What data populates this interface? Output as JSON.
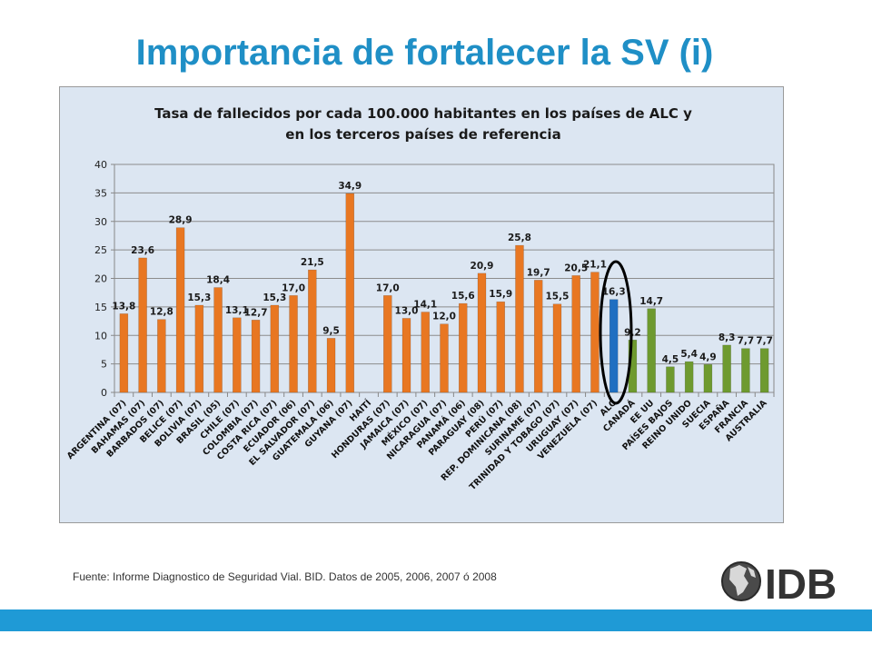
{
  "slide": {
    "title": "Importancia de fortalecer la SV (i)",
    "source": "Fuente: Informe Diagnostico de Seguridad Vial. BID. Datos de 2005, 2006, 2007 ó 2008",
    "logo_text": "IDB"
  },
  "colors": {
    "title": "#1f8fc6",
    "alc_bar": "#e87722",
    "aggregate_bar": "#1f6fc1",
    "reference_bar": "#6e9a2f",
    "bottom_bar": "#1f9ad6",
    "chart_bg": "#dce6f2"
  },
  "chart_data": {
    "type": "bar",
    "title": "Tasa de fallecidos por cada 100.000 habitantes en los países de ALC y en los terceros países de referencia",
    "title_lines": [
      "Tasa de fallecidos por cada 100.000 habitantes en los países de ALC y",
      "en los terceros países de referencia"
    ],
    "xlabel": "",
    "ylabel": "",
    "ylim": [
      0,
      40
    ],
    "yticks": [
      0,
      5,
      10,
      15,
      20,
      25,
      30,
      35,
      40
    ],
    "grid": true,
    "highlight": "ALC (oval outline)",
    "categories": [
      "ARGENTINA (07)",
      "BAHAMAS (07)",
      "BARBADOS (07)",
      "BELICE (07)",
      "BOLIVIA (07)",
      "BRASIL (05)",
      "CHILE (07)",
      "COLOMBIA (07)",
      "COSTA RICA (07)",
      "ECUADOR (06)",
      "EL SALVADOR (07)",
      "GUATEMALA (06)",
      "GUYANA (07)",
      "HAITÍ",
      "HONDURAS (07)",
      "JAMAICA (07)",
      "MÉXICO (07)",
      "NICARAGUA (07)",
      "PANAMÁ (06)",
      "PARAGUAY (08)",
      "PERÚ (07)",
      "REP. DOMINICANA (08)",
      "SURINAME (07)",
      "TRINIDAD Y TOBAGO (07)",
      "URUGUAY (07)",
      "VENEZUELA (07)",
      "ALC",
      "CANADÁ",
      "EE UU",
      "PAÍSES BAJOS",
      "REINO UNIDO",
      "SUECIA",
      "ESPAÑA",
      "FRANCIA",
      "AUSTRALIA"
    ],
    "values": [
      13.8,
      23.6,
      12.8,
      28.9,
      15.3,
      18.4,
      13.1,
      12.7,
      15.3,
      17.0,
      21.5,
      9.5,
      34.9,
      null,
      17.0,
      13.0,
      14.1,
      12.0,
      15.6,
      20.9,
      15.9,
      25.8,
      19.7,
      15.5,
      20.5,
      21.1,
      16.3,
      9.2,
      14.7,
      4.5,
      5.4,
      4.9,
      8.3,
      7.7,
      7.7
    ],
    "data_labels": [
      "13,8",
      "23,6",
      "12,8",
      "28,9",
      "15,3",
      "18,4",
      "13,1",
      "12,7",
      "15,3",
      "17,0",
      "21,5",
      "9,5",
      "34,9",
      "",
      "17,0",
      "13,0",
      "14,1",
      "12,0",
      "15,6",
      "20,9",
      "15,9",
      "25,8",
      "19,7",
      "15,5",
      "20,5",
      "21,1",
      "16,3",
      "9,2",
      "14,7",
      "4,5",
      "5,4",
      "4,9",
      "8,3",
      "7,7",
      "7,7"
    ],
    "groups": [
      "ALC",
      "ALC",
      "ALC",
      "ALC",
      "ALC",
      "ALC",
      "ALC",
      "ALC",
      "ALC",
      "ALC",
      "ALC",
      "ALC",
      "ALC",
      "ALC",
      "ALC",
      "ALC",
      "ALC",
      "ALC",
      "ALC",
      "ALC",
      "ALC",
      "ALC",
      "ALC",
      "ALC",
      "ALC",
      "ALC",
      "aggregate",
      "reference",
      "reference",
      "reference",
      "reference",
      "reference",
      "reference",
      "reference",
      "reference"
    ]
  }
}
